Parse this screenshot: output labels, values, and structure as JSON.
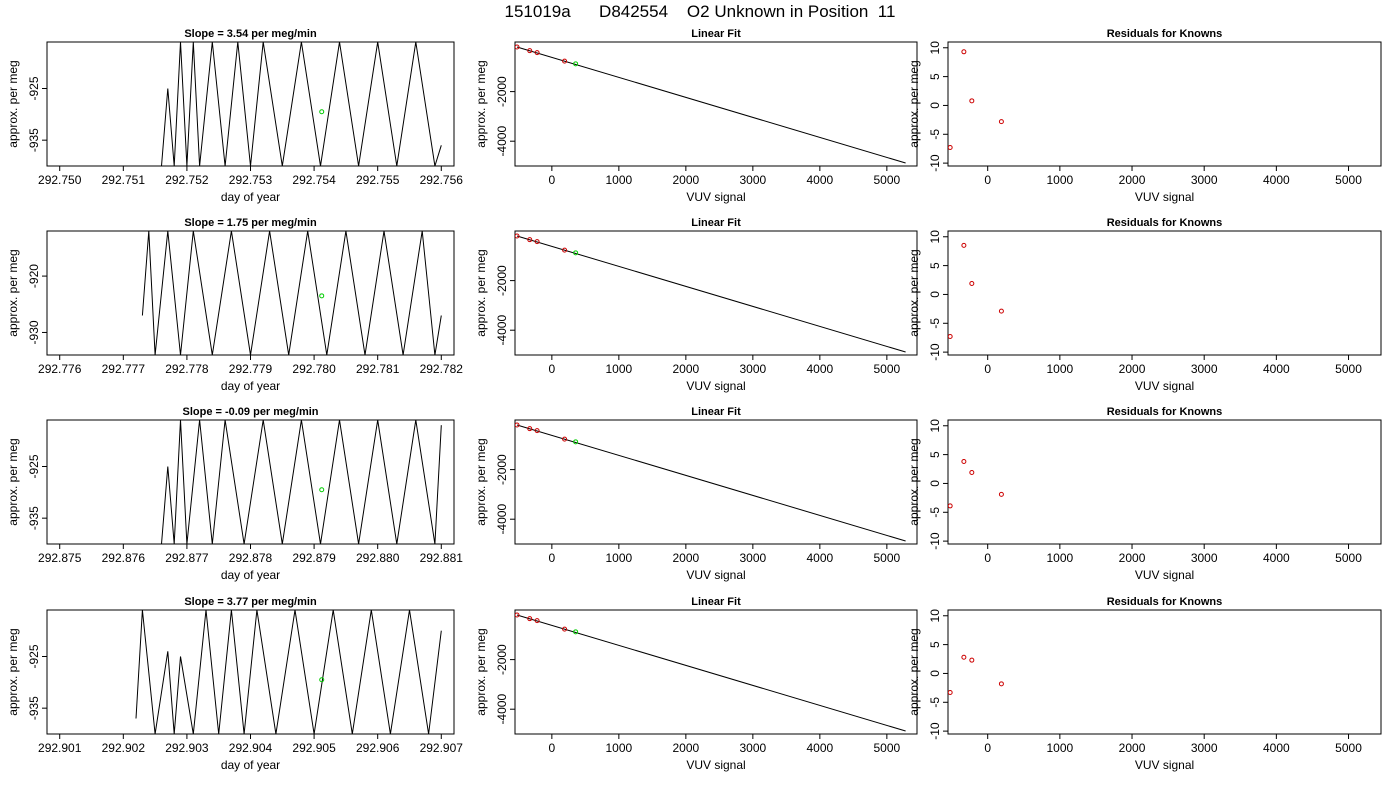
{
  "figure": {
    "title": "151019a      D842554    O2 Unknown in Position  11"
  },
  "colors": {
    "known_points": "#cc0000",
    "unknown_point": "#00cc00",
    "line": "#000000"
  },
  "chart_data": [
    {
      "type": "line",
      "row": 1,
      "panel": "time-series",
      "title": "Slope =  3.54  per meg/min",
      "xlabel": "day of year",
      "ylabel": "approx. per meg",
      "xlim": [
        292.7498,
        292.7562
      ],
      "ylim": [
        -940,
        -916
      ],
      "xticks": [
        "292.750",
        "292.751",
        "292.752",
        "292.753",
        "292.754",
        "292.755",
        "292.756"
      ],
      "yticks": [
        "-925",
        "-935"
      ],
      "signal_start": 292.7516,
      "signal_end": 292.756,
      "series": [
        {
          "x": [
            292.7516,
            292.7517,
            292.7518,
            292.7519,
            292.752,
            292.7521,
            292.7522,
            292.7524,
            292.7526,
            292.7528,
            292.753,
            292.7532,
            292.7535,
            292.7538,
            292.7541,
            292.7544,
            292.7547,
            292.755,
            292.7553,
            292.7556,
            292.7559,
            292.756
          ],
          "values": [
            -940,
            -925,
            -940,
            -916,
            -940,
            -916,
            -940,
            -916,
            -940,
            -916,
            -940,
            -916,
            -940,
            -916,
            -940,
            -916,
            -940,
            -916,
            -940,
            -916,
            -940,
            -936
          ]
        }
      ],
      "unknown_point": {
        "x": 292.75412,
        "y": -929.5
      }
    },
    {
      "type": "scatter",
      "row": 1,
      "panel": "linear-fit",
      "title": "Linear Fit",
      "xlabel": "VUV signal",
      "ylabel": "approx. per meg",
      "xlim": [
        -550,
        5450
      ],
      "ylim": [
        -5000,
        0
      ],
      "xticks": [
        "0",
        "1000",
        "2000",
        "3000",
        "4000",
        "5000"
      ],
      "yticks": [
        "-2000",
        "-4000"
      ],
      "fit_line": {
        "x": [
          -520,
          5280
        ],
        "y": [
          -200,
          -4880
        ]
      },
      "known_points": {
        "x": [
          -520,
          -330,
          -220,
          190
        ],
        "y": [
          -200,
          -350,
          -430,
          -770
        ]
      },
      "unknown_point": {
        "x": 355,
        "y": -880
      }
    },
    {
      "type": "scatter",
      "row": 1,
      "panel": "residuals",
      "title": "Residuals for Knowns",
      "xlabel": "VUV signal",
      "ylabel": "approx. per meg",
      "xlim": [
        -550,
        5450
      ],
      "ylim": [
        -10.5,
        11
      ],
      "xticks": [
        "0",
        "1000",
        "2000",
        "3000",
        "4000",
        "5000"
      ],
      "yticks": [
        "-10",
        "-5",
        "0",
        "5",
        "10"
      ],
      "x": [
        -520,
        -330,
        -220,
        190
      ],
      "y": [
        -7.3,
        9.3,
        0.8,
        -2.8
      ]
    },
    {
      "type": "line",
      "row": 2,
      "panel": "time-series",
      "title": "Slope =  1.75  per meg/min",
      "xlabel": "day of year",
      "ylabel": "approx. per meg",
      "xlim": [
        292.7758,
        292.7822
      ],
      "ylim": [
        -934,
        -912
      ],
      "xticks": [
        "292.776",
        "292.777",
        "292.778",
        "292.779",
        "292.780",
        "292.781",
        "292.782"
      ],
      "yticks": [
        "-920",
        "-930"
      ],
      "signal_start": 292.7773,
      "signal_end": 292.782,
      "series": [
        {
          "x": [
            292.7773,
            292.7774,
            292.7775,
            292.7777,
            292.7779,
            292.7781,
            292.7784,
            292.7787,
            292.779,
            292.7793,
            292.7796,
            292.7799,
            292.7802,
            292.7805,
            292.7808,
            292.7811,
            292.7814,
            292.7817,
            292.7819,
            292.782
          ],
          "values": [
            -927,
            -912,
            -934,
            -912,
            -934,
            -912,
            -934,
            -912,
            -934,
            -912,
            -934,
            -912,
            -934,
            -912,
            -934,
            -912,
            -934,
            -912,
            -934,
            -927
          ]
        }
      ],
      "unknown_point": {
        "x": 292.78012,
        "y": -923.5
      }
    },
    {
      "type": "scatter",
      "row": 2,
      "panel": "linear-fit",
      "title": "Linear Fit",
      "xlabel": "VUV signal",
      "ylabel": "approx. per meg",
      "xlim": [
        -550,
        5450
      ],
      "ylim": [
        -5000,
        0
      ],
      "xticks": [
        "0",
        "1000",
        "2000",
        "3000",
        "4000",
        "5000"
      ],
      "yticks": [
        "-2000",
        "-4000"
      ],
      "fit_line": {
        "x": [
          -520,
          5280
        ],
        "y": [
          -200,
          -4880
        ]
      },
      "known_points": {
        "x": [
          -520,
          -330,
          -220,
          190
        ],
        "y": [
          -200,
          -350,
          -430,
          -770
        ]
      },
      "unknown_point": {
        "x": 355,
        "y": -880
      }
    },
    {
      "type": "scatter",
      "row": 2,
      "panel": "residuals",
      "title": "Residuals for Knowns",
      "xlabel": "VUV signal",
      "ylabel": "approx. per meg",
      "xlim": [
        -550,
        5450
      ],
      "ylim": [
        -10.5,
        11
      ],
      "xticks": [
        "0",
        "1000",
        "2000",
        "3000",
        "4000",
        "5000"
      ],
      "yticks": [
        "-10",
        "-5",
        "0",
        "5",
        "10"
      ],
      "x": [
        -520,
        -330,
        -220,
        190
      ],
      "y": [
        -7.3,
        8.5,
        1.9,
        -2.9
      ]
    },
    {
      "type": "line",
      "row": 3,
      "panel": "time-series",
      "title": "Slope =  -0.09  per meg/min",
      "xlabel": "day of year",
      "ylabel": "approx. per meg",
      "xlim": [
        292.8748,
        292.8812
      ],
      "ylim": [
        -940,
        -916
      ],
      "xticks": [
        "292.875",
        "292.876",
        "292.877",
        "292.878",
        "292.879",
        "292.880",
        "292.881"
      ],
      "yticks": [
        "-925",
        "-935"
      ],
      "signal_start": 292.8766,
      "signal_end": 292.881,
      "series": [
        {
          "x": [
            292.8766,
            292.8767,
            292.8768,
            292.8769,
            292.877,
            292.8772,
            292.8774,
            292.8776,
            292.8779,
            292.8782,
            292.8785,
            292.8788,
            292.8791,
            292.8794,
            292.8797,
            292.88,
            292.8803,
            292.8806,
            292.8809,
            292.881
          ],
          "values": [
            -940,
            -925,
            -940,
            -916,
            -940,
            -916,
            -940,
            -916,
            -940,
            -916,
            -940,
            -916,
            -940,
            -916,
            -940,
            -916,
            -940,
            -916,
            -940,
            -917
          ]
        }
      ],
      "unknown_point": {
        "x": 292.87912,
        "y": -929.5
      }
    },
    {
      "type": "scatter",
      "row": 3,
      "panel": "linear-fit",
      "title": "Linear Fit",
      "xlabel": "VUV signal",
      "ylabel": "approx. per meg",
      "xlim": [
        -550,
        5450
      ],
      "ylim": [
        -5000,
        0
      ],
      "xticks": [
        "0",
        "1000",
        "2000",
        "3000",
        "4000",
        "5000"
      ],
      "yticks": [
        "-2000",
        "-4000"
      ],
      "fit_line": {
        "x": [
          -520,
          5280
        ],
        "y": [
          -200,
          -4880
        ]
      },
      "known_points": {
        "x": [
          -520,
          -330,
          -220,
          190
        ],
        "y": [
          -200,
          -350,
          -430,
          -770
        ]
      },
      "unknown_point": {
        "x": 355,
        "y": -880
      }
    },
    {
      "type": "scatter",
      "row": 3,
      "panel": "residuals",
      "title": "Residuals for Knowns",
      "xlabel": "VUV signal",
      "ylabel": "approx. per meg",
      "xlim": [
        -550,
        5450
      ],
      "ylim": [
        -10.5,
        11
      ],
      "xticks": [
        "0",
        "1000",
        "2000",
        "3000",
        "4000",
        "5000"
      ],
      "yticks": [
        "-10",
        "-5",
        "0",
        "5",
        "10"
      ],
      "x": [
        -520,
        -330,
        -220,
        190
      ],
      "y": [
        -3.9,
        3.8,
        1.9,
        -1.9
      ]
    },
    {
      "type": "line",
      "row": 4,
      "panel": "time-series",
      "title": "Slope =  3.77  per meg/min",
      "xlabel": "day of year",
      "ylabel": "approx. per meg",
      "xlim": [
        292.9008,
        292.9072
      ],
      "ylim": [
        -940,
        -916
      ],
      "xticks": [
        "292.901",
        "292.902",
        "292.903",
        "292.904",
        "292.905",
        "292.906",
        "292.907"
      ],
      "yticks": [
        "-925",
        "-935"
      ],
      "signal_start": 292.9022,
      "signal_end": 292.907,
      "series": [
        {
          "x": [
            292.9022,
            292.9023,
            292.9025,
            292.9027,
            292.9028,
            292.9029,
            292.9031,
            292.9033,
            292.9035,
            292.9037,
            292.9039,
            292.9041,
            292.9044,
            292.9047,
            292.905,
            292.9053,
            292.9056,
            292.9059,
            292.9062,
            292.9065,
            292.9068,
            292.907
          ],
          "values": [
            -937,
            -916,
            -940,
            -924,
            -940,
            -925,
            -940,
            -916,
            -940,
            -916,
            -940,
            -916,
            -940,
            -916,
            -940,
            -916,
            -940,
            -916,
            -940,
            -916,
            -940,
            -920
          ]
        }
      ],
      "unknown_point": {
        "x": 292.90512,
        "y": -929.5
      }
    },
    {
      "type": "scatter",
      "row": 4,
      "panel": "linear-fit",
      "title": "Linear Fit",
      "xlabel": "VUV signal",
      "ylabel": "approx. per meg",
      "xlim": [
        -550,
        5450
      ],
      "ylim": [
        -5000,
        0
      ],
      "xticks": [
        "0",
        "1000",
        "2000",
        "3000",
        "4000",
        "5000"
      ],
      "yticks": [
        "-2000",
        "-4000"
      ],
      "fit_line": {
        "x": [
          -520,
          5280
        ],
        "y": [
          -200,
          -4880
        ]
      },
      "known_points": {
        "x": [
          -520,
          -330,
          -220,
          190
        ],
        "y": [
          -200,
          -350,
          -430,
          -770
        ]
      },
      "unknown_point": {
        "x": 355,
        "y": -880
      }
    },
    {
      "type": "scatter",
      "row": 4,
      "panel": "residuals",
      "title": "Residuals for Knowns",
      "xlabel": "VUV signal",
      "ylabel": "approx. per meg",
      "xlim": [
        -550,
        5450
      ],
      "ylim": [
        -10.5,
        11
      ],
      "xticks": [
        "0",
        "1000",
        "2000",
        "3000",
        "4000",
        "5000"
      ],
      "yticks": [
        "-10",
        "-5",
        "0",
        "5",
        "10"
      ],
      "x": [
        -520,
        -330,
        -220,
        190
      ],
      "y": [
        -3.3,
        2.8,
        2.3,
        -1.8
      ]
    }
  ]
}
